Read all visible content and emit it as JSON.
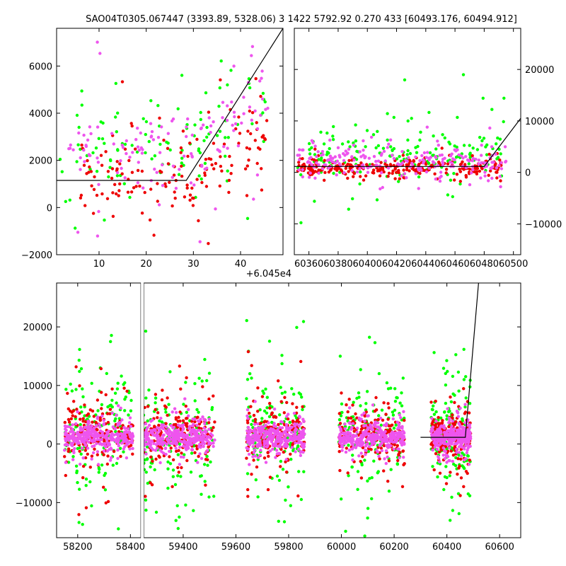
{
  "title": "SAO04T0305.067447 (3393.89, 5328.06)   3 1422 5792.92 0.270 433 [60493.176, 60494.912]",
  "colors": {
    "green": "#00ff00",
    "red": "#ee0000",
    "magenta": "#ee55ee",
    "line": "#000000"
  },
  "chart_data": [
    {
      "id": "top-left",
      "type": "scatter",
      "title": "",
      "xlabel": "",
      "ylabel": "",
      "xlim": [
        1,
        49
      ],
      "ylim": [
        -2000,
        7600
      ],
      "xticks": [
        10,
        20,
        30,
        40
      ],
      "yticks": [
        -2000,
        0,
        2000,
        4000,
        6000
      ],
      "ytick_labels": [
        "−2000",
        "0",
        "2000",
        "4000",
        "6000"
      ],
      "y_axis_side": "left",
      "model_line": {
        "x": [
          1,
          28.5,
          49
        ],
        "y": [
          1150,
          1150,
          7600
        ]
      },
      "series": [
        {
          "color": "green",
          "x_range": [
            1,
            46
          ],
          "y_center": 2600,
          "spread": 1800,
          "count": 110
        },
        {
          "color": "red",
          "x_range": [
            6,
            46
          ],
          "y_center": 1200,
          "spread": 1300,
          "count": 150
        },
        {
          "color": "magenta",
          "x_range": [
            2,
            46
          ],
          "y_center": 2200,
          "spread": 1500,
          "count": 130
        }
      ]
    },
    {
      "id": "top-right",
      "type": "scatter",
      "title": "",
      "xlabel": "",
      "ylabel": "",
      "xlim": [
        60350,
        60505
      ],
      "ylim": [
        -16000,
        28000
      ],
      "xticks": [
        60360,
        60380,
        60400,
        60420,
        60440,
        60460,
        60480,
        60500
      ],
      "xtick_labels": [
        "60360",
        "60380",
        "60400",
        "60420",
        "60440",
        "60460",
        "60480",
        "60500"
      ],
      "x_offset_label": "+6.045e4",
      "yticks": [
        -10000,
        0,
        10000,
        20000
      ],
      "ytick_labels": [
        "−10000",
        "0",
        "10000",
        "20000"
      ],
      "y_axis_side": "right",
      "model_line": {
        "x": [
          60350,
          60480,
          60505
        ],
        "y": [
          1150,
          1150,
          10500
        ]
      },
      "series": [
        {
          "color": "green",
          "x_range": [
            60352,
            60495
          ],
          "y_center": 3000,
          "spread": 5000,
          "count": 180
        },
        {
          "color": "red",
          "x_range": [
            60352,
            60495
          ],
          "y_center": 1000,
          "spread": 1500,
          "count": 260
        },
        {
          "color": "magenta",
          "x_range": [
            60352,
            60495
          ],
          "y_center": 2000,
          "spread": 2500,
          "count": 220
        }
      ]
    },
    {
      "id": "bottom",
      "type": "scatter",
      "title": "",
      "xlabel": "",
      "ylabel": "",
      "xlim": [
        58120,
        60680
      ],
      "ylim": [
        -16000,
        27500
      ],
      "xticks": [
        58200,
        58400,
        59400,
        59600,
        59800,
        60000,
        60200,
        60400,
        60600
      ],
      "axis_break": [
        58445,
        59245
      ],
      "yticks": [
        -10000,
        0,
        10000,
        20000
      ],
      "ytick_labels": [
        "−10000",
        "0",
        "10000",
        "20000"
      ],
      "y_axis_side": "left",
      "model_line": {
        "x": [
          60300,
          60470,
          60520
        ],
        "y": [
          1150,
          1150,
          27500
        ]
      },
      "series": [
        {
          "color": "green",
          "groups": [
            [
              58150,
              58410
            ],
            [
              59250,
              59520
            ],
            [
              59640,
              59860
            ],
            [
              59990,
              60240
            ],
            [
              60340,
              60490
            ]
          ],
          "y_center": 2000,
          "spread": 8000,
          "count": 700
        },
        {
          "color": "red",
          "groups": [
            [
              58150,
              58410
            ],
            [
              59250,
              59520
            ],
            [
              59640,
              59860
            ],
            [
              59990,
              60240
            ],
            [
              60340,
              60490
            ]
          ],
          "y_center": 1500,
          "spread": 4000,
          "count": 900
        },
        {
          "color": "magenta",
          "groups": [
            [
              58150,
              58410
            ],
            [
              59250,
              59520
            ],
            [
              59640,
              59860
            ],
            [
              59990,
              60240
            ],
            [
              60340,
              60490
            ]
          ],
          "y_center": 1200,
          "spread": 1800,
          "count": 1600
        }
      ]
    }
  ]
}
